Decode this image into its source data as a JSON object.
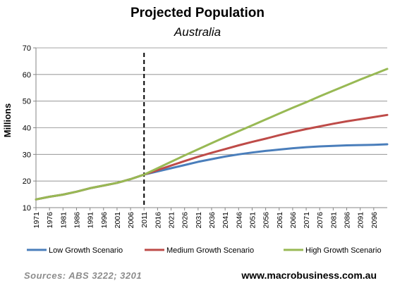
{
  "header": {
    "title": "Projected Population",
    "subtitle": "Australia"
  },
  "footer": {
    "source": "Sources:  ABS  3222;  3201",
    "website": "www.macrobusiness.com.au"
  },
  "chart_data": {
    "type": "line",
    "title": "Projected Population",
    "subtitle": "Australia",
    "ylabel": "Millions",
    "xlabel": "",
    "ylim": [
      10,
      70
    ],
    "yticks": [
      10,
      20,
      30,
      40,
      50,
      60,
      70
    ],
    "xlim": [
      1971,
      2101
    ],
    "xtick_labels": [
      "1971",
      "1976",
      "1981",
      "1986",
      "1991",
      "1996",
      "2001",
      "2006",
      "2011",
      "2016",
      "2021",
      "2026",
      "2031",
      "2036",
      "2041",
      "2046",
      "2051",
      "2056",
      "2061",
      "2066",
      "2071",
      "2076",
      "2081",
      "2086",
      "2091",
      "2096"
    ],
    "vertical_marker_x": 2011,
    "grid": "horizontal",
    "legend_position": "bottom",
    "x": [
      1971,
      1976,
      1981,
      1986,
      1991,
      1996,
      2001,
      2006,
      2011,
      2016,
      2021,
      2026,
      2031,
      2036,
      2041,
      2046,
      2051,
      2056,
      2061,
      2066,
      2071,
      2076,
      2081,
      2086,
      2091,
      2096,
      2101
    ],
    "series": [
      {
        "name": "Low Growth Scenario",
        "color": "#4a7ebb",
        "values": [
          13.1,
          14.1,
          14.9,
          16.0,
          17.3,
          18.3,
          19.3,
          20.7,
          22.4,
          23.6,
          24.8,
          26.0,
          27.2,
          28.2,
          29.2,
          30.0,
          30.7,
          31.3,
          31.8,
          32.3,
          32.7,
          33.0,
          33.2,
          33.4,
          33.5,
          33.6,
          33.8
        ]
      },
      {
        "name": "Medium Growth Scenario",
        "color": "#be4b48",
        "values": [
          13.1,
          14.1,
          14.9,
          16.0,
          17.3,
          18.3,
          19.3,
          20.7,
          22.4,
          24.1,
          25.8,
          27.5,
          29.1,
          30.6,
          32.0,
          33.4,
          34.7,
          35.9,
          37.2,
          38.4,
          39.5,
          40.5,
          41.5,
          42.4,
          43.2,
          44.0,
          44.8
        ]
      },
      {
        "name": "High Growth Scenario",
        "color": "#98b954",
        "values": [
          13.1,
          14.1,
          14.9,
          16.0,
          17.3,
          18.3,
          19.3,
          20.7,
          22.4,
          24.8,
          27.2,
          29.6,
          31.9,
          34.2,
          36.5,
          38.7,
          40.9,
          43.1,
          45.3,
          47.5,
          49.6,
          51.8,
          53.9,
          56.0,
          58.1,
          60.1,
          62.1
        ]
      }
    ]
  }
}
